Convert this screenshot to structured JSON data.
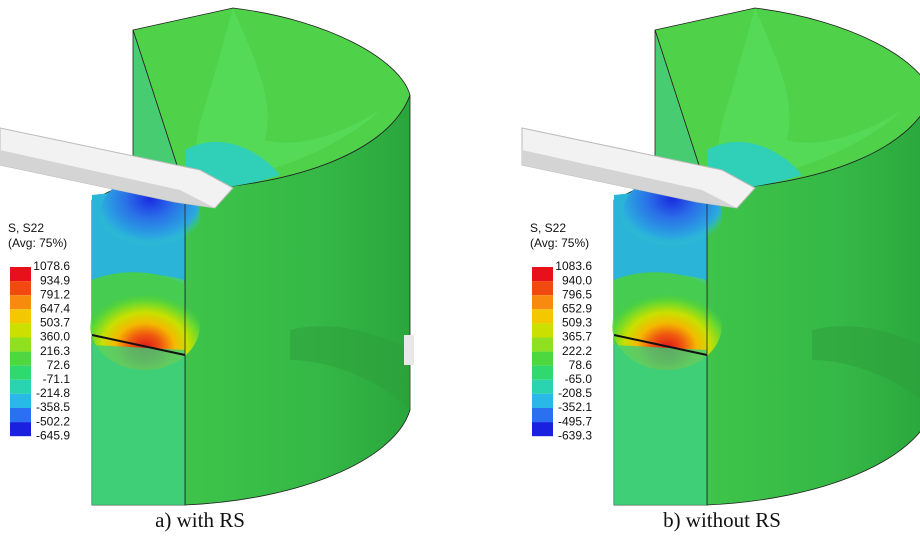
{
  "panels": [
    {
      "legend": {
        "title": "S, S22",
        "subtitle": "(Avg: 75%)",
        "values": [
          "1078.6",
          "934.9",
          "791.2",
          "647.4",
          "503.7",
          "360.0",
          "216.3",
          "72.6",
          "-71.1",
          "-214.8",
          "-358.5",
          "-502.2",
          "-645.9"
        ]
      },
      "caption": "a) with RS"
    },
    {
      "legend": {
        "title": "S, S22",
        "subtitle": "(Avg: 75%)",
        "values": [
          "1083.6",
          "940.0",
          "796.5",
          "652.9",
          "509.3",
          "365.7",
          "222.2",
          "78.6",
          "-65.0",
          "-208.5",
          "-352.1",
          "-495.7",
          "-639.3"
        ]
      },
      "caption": "b) without RS"
    }
  ]
}
